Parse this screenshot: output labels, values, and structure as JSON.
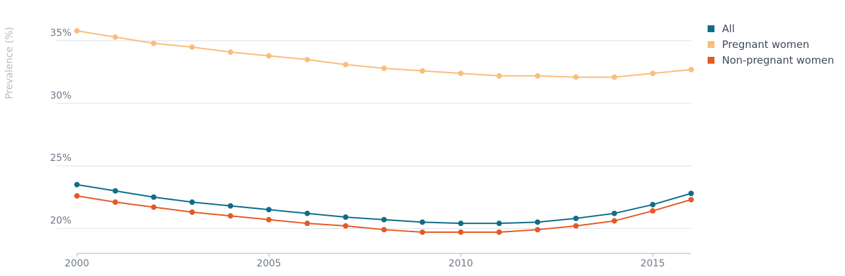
{
  "chart_data": {
    "type": "line",
    "ylabel": "Prevalence (%)",
    "xlabel": "",
    "title": "",
    "x": [
      2000,
      2001,
      2002,
      2003,
      2004,
      2005,
      2006,
      2007,
      2008,
      2009,
      2010,
      2011,
      2012,
      2013,
      2014,
      2015,
      2016
    ],
    "xlim": [
      2000,
      2016
    ],
    "ylim": [
      18,
      37.5
    ],
    "x_ticks": [
      2000,
      2005,
      2010,
      2015
    ],
    "x_tick_labels": [
      "2000",
      "2005",
      "2010",
      "2015"
    ],
    "y_ticks": [
      20,
      25,
      30,
      35
    ],
    "y_tick_labels": [
      "20%",
      "25%",
      "30%",
      "35%"
    ],
    "grid": true,
    "legend_position": "top-right",
    "series": [
      {
        "name": "All",
        "color": "#0e6e8a",
        "values": [
          23.5,
          23.0,
          22.5,
          22.1,
          21.8,
          21.5,
          21.2,
          20.9,
          20.7,
          20.5,
          20.4,
          20.4,
          20.5,
          20.8,
          21.2,
          21.9,
          22.8
        ]
      },
      {
        "name": "Pregnant women",
        "color": "#f9be7a",
        "values": [
          35.8,
          35.3,
          34.8,
          34.5,
          34.1,
          33.8,
          33.5,
          33.1,
          32.8,
          32.6,
          32.4,
          32.2,
          32.2,
          32.1,
          32.1,
          32.4,
          32.7
        ]
      },
      {
        "name": "Non-pregnant women",
        "color": "#e55a24",
        "values": [
          22.6,
          22.1,
          21.7,
          21.3,
          21.0,
          20.7,
          20.4,
          20.2,
          19.9,
          19.7,
          19.7,
          19.7,
          19.9,
          20.2,
          20.6,
          21.4,
          22.3
        ]
      }
    ]
  }
}
